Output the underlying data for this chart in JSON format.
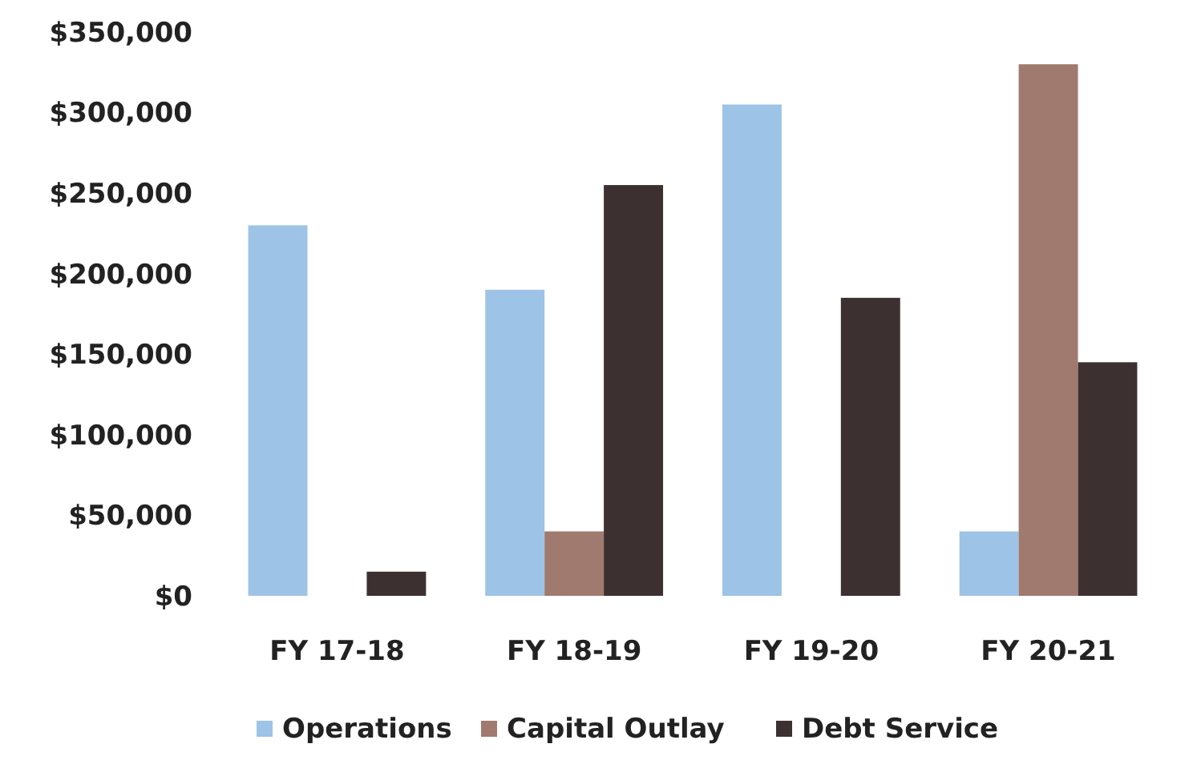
{
  "chart_data": {
    "type": "bar",
    "categories": [
      "FY 17-18",
      "FY 18-19",
      "FY 19-20",
      "FY 20-21"
    ],
    "series": [
      {
        "name": "Operations",
        "color": "#9dc3e6",
        "values": [
          230000,
          190000,
          305000,
          40000
        ]
      },
      {
        "name": "Capital Outlay",
        "color": "#a07a6e",
        "values": [
          0,
          40000,
          0,
          330000
        ]
      },
      {
        "name": "Debt Service",
        "color": "#3d3030",
        "values": [
          15000,
          255000,
          185000,
          145000
        ]
      }
    ],
    "ylim": [
      0,
      350000
    ],
    "yticks": [
      {
        "value": 0,
        "label": "$0"
      },
      {
        "value": 50000,
        "label": "$50,000"
      },
      {
        "value": 100000,
        "label": "$100,000"
      },
      {
        "value": 150000,
        "label": "$150,000"
      },
      {
        "value": 200000,
        "label": "$200,000"
      },
      {
        "value": 250000,
        "label": "$250,000"
      },
      {
        "value": 300000,
        "label": "$300,000"
      },
      {
        "value": 350000,
        "label": "$350,000"
      }
    ],
    "grid": false,
    "legend": "bottom"
  }
}
